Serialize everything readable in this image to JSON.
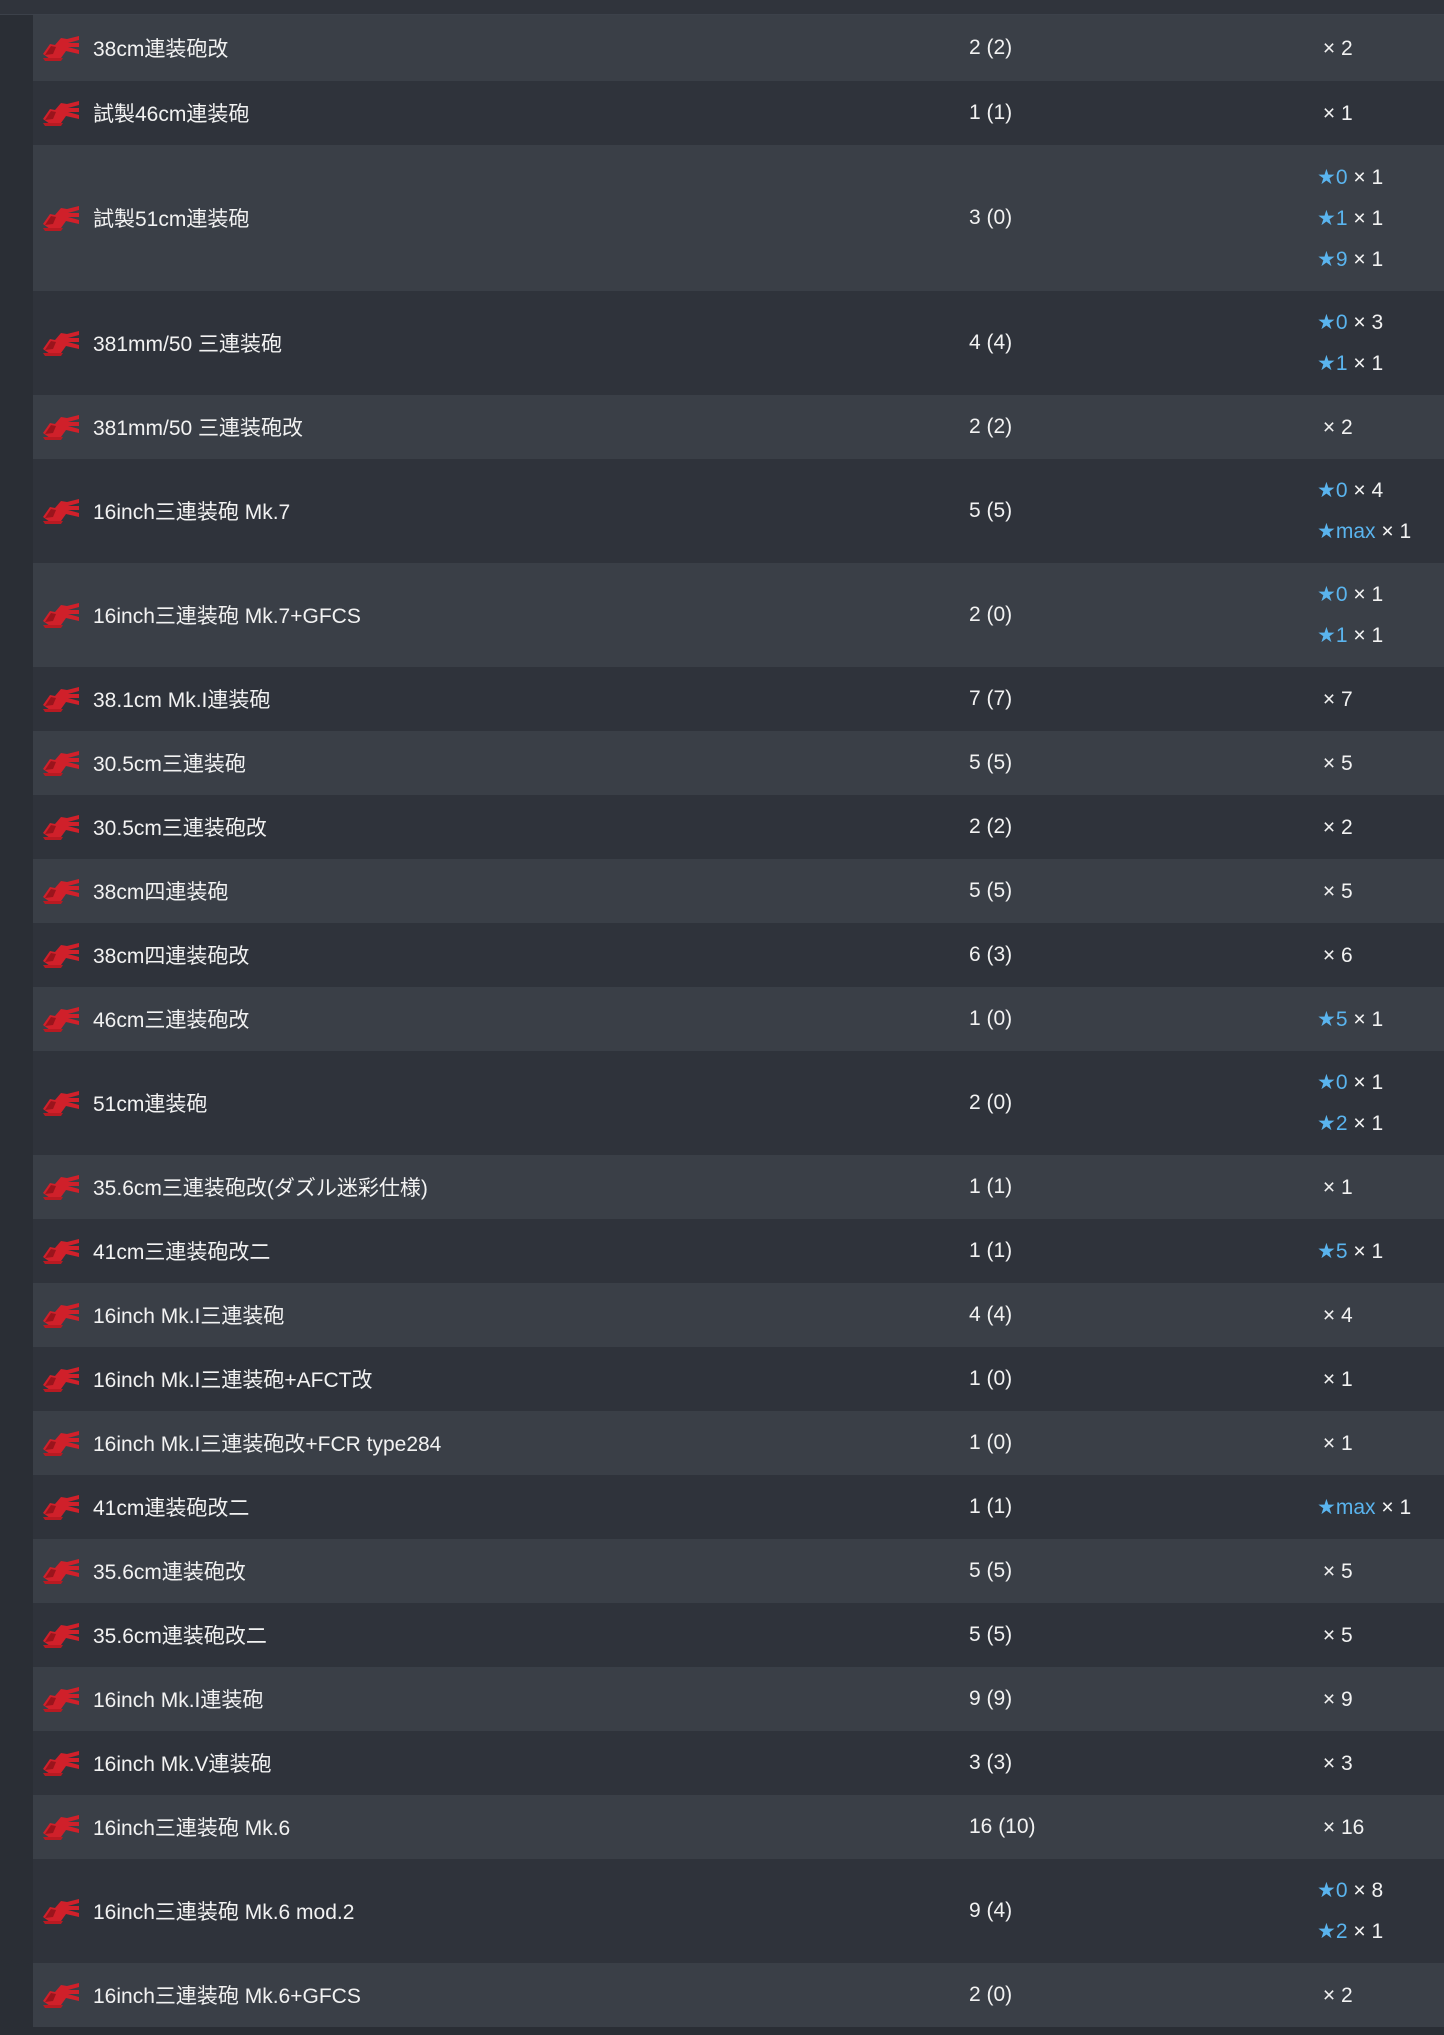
{
  "equipment": [
    {
      "name": "38cm連装砲改",
      "count": "2 (2)",
      "stars": [
        {
          "level": "",
          "qty": "× 2"
        }
      ]
    },
    {
      "name": "試製46cm連装砲",
      "count": "1 (1)",
      "stars": [
        {
          "level": "",
          "qty": "× 1"
        }
      ]
    },
    {
      "name": "試製51cm連装砲",
      "count": "3 (0)",
      "stars": [
        {
          "level": "★0",
          "qty": "× 1"
        },
        {
          "level": "★1",
          "qty": "× 1"
        },
        {
          "level": "★9",
          "qty": "× 1"
        }
      ]
    },
    {
      "name": "381mm/50 三連装砲",
      "count": "4 (4)",
      "stars": [
        {
          "level": "★0",
          "qty": "× 3"
        },
        {
          "level": "★1",
          "qty": "× 1"
        }
      ]
    },
    {
      "name": "381mm/50 三連装砲改",
      "count": "2 (2)",
      "stars": [
        {
          "level": "",
          "qty": "× 2"
        }
      ]
    },
    {
      "name": "16inch三連装砲 Mk.7",
      "count": "5 (5)",
      "stars": [
        {
          "level": "★0",
          "qty": "× 4"
        },
        {
          "level": "★max",
          "qty": "× 1"
        }
      ]
    },
    {
      "name": "16inch三連装砲 Mk.7+GFCS",
      "count": "2 (0)",
      "stars": [
        {
          "level": "★0",
          "qty": "× 1"
        },
        {
          "level": "★1",
          "qty": "× 1"
        }
      ]
    },
    {
      "name": "38.1cm Mk.I連装砲",
      "count": "7 (7)",
      "stars": [
        {
          "level": "",
          "qty": "× 7"
        }
      ]
    },
    {
      "name": "30.5cm三連装砲",
      "count": "5 (5)",
      "stars": [
        {
          "level": "",
          "qty": "× 5"
        }
      ]
    },
    {
      "name": "30.5cm三連装砲改",
      "count": "2 (2)",
      "stars": [
        {
          "level": "",
          "qty": "× 2"
        }
      ]
    },
    {
      "name": "38cm四連装砲",
      "count": "5 (5)",
      "stars": [
        {
          "level": "",
          "qty": "× 5"
        }
      ]
    },
    {
      "name": "38cm四連装砲改",
      "count": "6 (3)",
      "stars": [
        {
          "level": "",
          "qty": "× 6"
        }
      ]
    },
    {
      "name": "46cm三連装砲改",
      "count": "1 (0)",
      "stars": [
        {
          "level": "★5",
          "qty": "× 1"
        }
      ]
    },
    {
      "name": "51cm連装砲",
      "count": "2 (0)",
      "stars": [
        {
          "level": "★0",
          "qty": "× 1"
        },
        {
          "level": "★2",
          "qty": "× 1"
        }
      ]
    },
    {
      "name": "35.6cm三連装砲改(ダズル迷彩仕様)",
      "count": "1 (1)",
      "stars": [
        {
          "level": "",
          "qty": "× 1"
        }
      ]
    },
    {
      "name": "41cm三連装砲改二",
      "count": "1 (1)",
      "stars": [
        {
          "level": "★5",
          "qty": "× 1"
        }
      ]
    },
    {
      "name": "16inch Mk.I三連装砲",
      "count": "4 (4)",
      "stars": [
        {
          "level": "",
          "qty": "× 4"
        }
      ]
    },
    {
      "name": "16inch Mk.I三連装砲+AFCT改",
      "count": "1 (0)",
      "stars": [
        {
          "level": "",
          "qty": "× 1"
        }
      ]
    },
    {
      "name": "16inch Mk.I三連装砲改+FCR type284",
      "count": "1 (0)",
      "stars": [
        {
          "level": "",
          "qty": "× 1"
        }
      ]
    },
    {
      "name": "41cm連装砲改二",
      "count": "1 (1)",
      "stars": [
        {
          "level": "★max",
          "qty": "× 1"
        }
      ]
    },
    {
      "name": "35.6cm連装砲改",
      "count": "5 (5)",
      "stars": [
        {
          "level": "",
          "qty": "× 5"
        }
      ]
    },
    {
      "name": "35.6cm連装砲改二",
      "count": "5 (5)",
      "stars": [
        {
          "level": "",
          "qty": "× 5"
        }
      ]
    },
    {
      "name": "16inch Mk.I連装砲",
      "count": "9 (9)",
      "stars": [
        {
          "level": "",
          "qty": "× 9"
        }
      ]
    },
    {
      "name": "16inch Mk.V連装砲",
      "count": "3 (3)",
      "stars": [
        {
          "level": "",
          "qty": "× 3"
        }
      ]
    },
    {
      "name": "16inch三連装砲 Mk.6",
      "count": "16 (10)",
      "stars": [
        {
          "level": "",
          "qty": "× 16"
        }
      ]
    },
    {
      "name": "16inch三連装砲 Mk.6 mod.2",
      "count": "9 (4)",
      "stars": [
        {
          "level": "★0",
          "qty": "× 8"
        },
        {
          "level": "★2",
          "qty": "× 1"
        }
      ]
    },
    {
      "name": "16inch三連装砲 Mk.6+GFCS",
      "count": "2 (0)",
      "stars": [
        {
          "level": "",
          "qty": "× 2"
        }
      ]
    }
  ],
  "colors": {
    "row_light": "#3a3f47",
    "row_dark": "#2f333b",
    "star_blue": "#5ab4ee",
    "icon_red": "#d0202a"
  },
  "icon": "large-caliber-main-gun-icon"
}
